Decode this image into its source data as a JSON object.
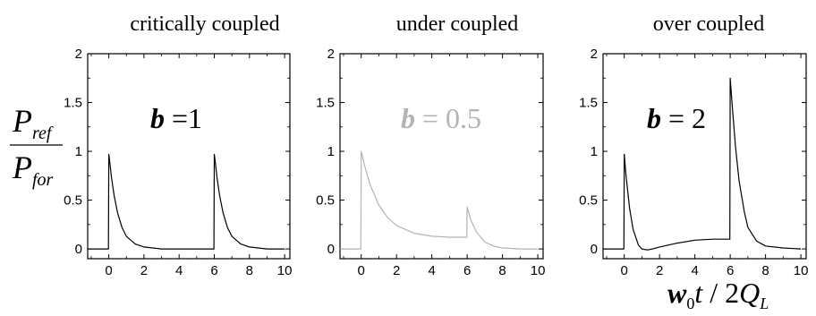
{
  "figure": {
    "ylabel": {
      "numerator_base": "P",
      "numerator_sub": "ref",
      "denominator_base": "P",
      "denominator_sub": "for"
    },
    "xlabel": {
      "w": "w",
      "w_sub": "0",
      "t": "t",
      "slash": " / 2",
      "q": "Q",
      "q_sub": "L"
    }
  },
  "chart_data": [
    {
      "type": "line",
      "title": "critically coupled",
      "annotation": {
        "symbol": "b",
        "text": "=1"
      },
      "color": "#000000",
      "xlim": [
        -1.2,
        10.3
      ],
      "ylim": [
        -0.1,
        2.0
      ],
      "xticks": [
        "0",
        "2",
        "4",
        "6",
        "8",
        "10"
      ],
      "yticks": [
        "0",
        "0.5",
        "1",
        "1.5",
        "2"
      ],
      "series": [
        {
          "x": [
            -1.2,
            -0.02,
            0,
            0.05,
            0.15,
            0.3,
            0.5,
            0.75,
            1.0,
            1.5,
            2.0,
            2.5,
            3.0,
            4.0,
            5.0,
            5.98,
            6.0,
            6.05,
            6.15,
            6.3,
            6.5,
            6.75,
            7.0,
            7.5,
            8.0,
            8.5,
            9.0,
            10.0
          ],
          "y": [
            0,
            0,
            0.97,
            0.9,
            0.74,
            0.55,
            0.37,
            0.22,
            0.13,
            0.05,
            0.02,
            0.01,
            0.0,
            0,
            0,
            0,
            0.97,
            0.9,
            0.74,
            0.55,
            0.37,
            0.22,
            0.13,
            0.05,
            0.02,
            0.01,
            0.0,
            0
          ]
        }
      ]
    },
    {
      "type": "line",
      "title": "under coupled",
      "annotation": {
        "symbol": "b",
        "text": "= 0.5"
      },
      "color": "#b4b4b4",
      "xlim": [
        -1.2,
        10.3
      ],
      "ylim": [
        -0.1,
        2.0
      ],
      "xticks": [
        "0",
        "2",
        "4",
        "6",
        "8",
        "10"
      ],
      "yticks": [
        "0",
        "0.5",
        "1",
        "1.5",
        "2"
      ],
      "series": [
        {
          "x": [
            -1.2,
            -0.02,
            0,
            0.2,
            0.5,
            1.0,
            1.5,
            2.0,
            3.0,
            4.0,
            5.0,
            5.98,
            6.0,
            6.2,
            6.5,
            7.0,
            7.5,
            8.0,
            9.0,
            10.0
          ],
          "y": [
            0,
            0,
            1.0,
            0.85,
            0.66,
            0.45,
            0.32,
            0.24,
            0.16,
            0.13,
            0.12,
            0.12,
            0.43,
            0.3,
            0.18,
            0.07,
            0.03,
            0.01,
            0.0,
            0
          ]
        }
      ]
    },
    {
      "type": "line",
      "title": "over coupled",
      "annotation": {
        "symbol": "b",
        "text": "= 2"
      },
      "color": "#000000",
      "xlim": [
        -1.2,
        10.3
      ],
      "ylim": [
        -0.1,
        2.0
      ],
      "xticks": [
        "0",
        "2",
        "4",
        "6",
        "8",
        "10"
      ],
      "yticks": [
        "0",
        "0.5",
        "1",
        "1.5",
        "2"
      ],
      "series": [
        {
          "x": [
            -1.2,
            -0.02,
            0,
            0.1,
            0.3,
            0.5,
            0.8,
            1.0,
            1.3,
            1.6,
            2.0,
            3.0,
            4.0,
            5.0,
            5.98,
            6.0,
            6.1,
            6.3,
            6.5,
            6.8,
            7.0,
            7.5,
            8.0,
            9.0,
            10.0
          ],
          "y": [
            0,
            0,
            0.97,
            0.75,
            0.42,
            0.2,
            0.04,
            0.0,
            -0.01,
            0.0,
            0.02,
            0.06,
            0.09,
            0.1,
            0.1,
            1.75,
            1.5,
            1.05,
            0.7,
            0.38,
            0.22,
            0.08,
            0.03,
            0.01,
            0
          ]
        }
      ]
    }
  ]
}
